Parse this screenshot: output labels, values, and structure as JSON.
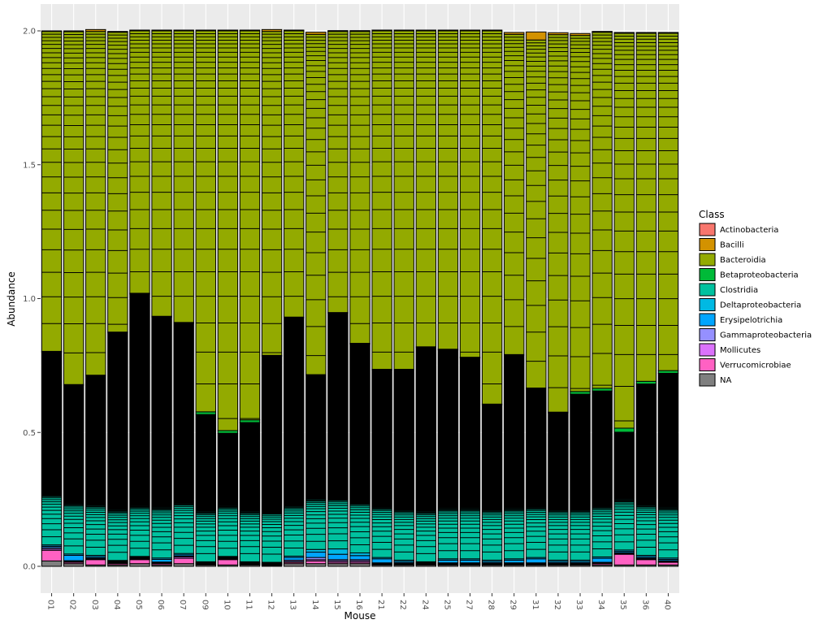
{
  "chart_data": {
    "type": "bar",
    "stacked": true,
    "xlabel": "Mouse",
    "ylabel": "Abundance",
    "ylim": [
      0,
      2.0
    ],
    "yticks": [
      "0.0",
      "0.5",
      "1.0",
      "1.5",
      "2.0"
    ],
    "yticks_values": [
      0,
      0.5,
      1.0,
      1.5,
      2.0
    ],
    "grid": true,
    "legend_position": "right",
    "legend_title": "Class",
    "categories": [
      "01",
      "02",
      "03",
      "04",
      "05",
      "06",
      "07",
      "09",
      "10",
      "11",
      "12",
      "13",
      "14",
      "15",
      "16",
      "21",
      "22",
      "24",
      "25",
      "27",
      "28",
      "29",
      "31",
      "32",
      "33",
      "34",
      "35",
      "36",
      "40"
    ],
    "classes": [
      {
        "name": "Actinobacteria",
        "color": "#F8766D"
      },
      {
        "name": "Bacilli",
        "color": "#D39200"
      },
      {
        "name": "Bacteroidia",
        "color": "#93AA00"
      },
      {
        "name": "Betaproteobacteria",
        "color": "#00BA38"
      },
      {
        "name": "Clostridia",
        "color": "#00C19F"
      },
      {
        "name": "Deltaproteobacteria",
        "color": "#00B9E3"
      },
      {
        "name": "Erysipelotrichia",
        "color": "#00A5FF"
      },
      {
        "name": "Gammaproteobacteria",
        "color": "#9590FF"
      },
      {
        "name": "Mollicutes",
        "color": "#DB72FB"
      },
      {
        "name": "Verrucomicrobiae",
        "color": "#FF61C3"
      },
      {
        "name": "NA",
        "color": "#7F7F7F"
      }
    ],
    "series": [
      {
        "name": "NA",
        "values": [
          0.02,
          0.01,
          0.005,
          0.005,
          0.01,
          0.005,
          0.01,
          0.005,
          0.005,
          0.005,
          0.003,
          0.01,
          0.01,
          0.01,
          0.01,
          0.005,
          0.005,
          0.005,
          0.005,
          0.005,
          0.005,
          0.005,
          0.005,
          0.005,
          0.005,
          0.005,
          0.005,
          0.005,
          0.005
        ]
      },
      {
        "name": "Verrucomicrobiae",
        "values": [
          0.04,
          0.005,
          0.02,
          0.005,
          0.015,
          0.005,
          0.02,
          0.003,
          0.02,
          0.003,
          0.003,
          0.005,
          0.01,
          0.005,
          0.005,
          0.003,
          0.003,
          0.003,
          0.003,
          0.003,
          0.003,
          0.003,
          0.003,
          0.003,
          0.003,
          0.005,
          0.04,
          0.02,
          0.01
        ]
      },
      {
        "name": "Mollicutes",
        "values": [
          0.005,
          0.003,
          0.003,
          0.003,
          0.003,
          0.003,
          0.005,
          0.002,
          0.003,
          0.002,
          0.002,
          0.003,
          0.005,
          0.005,
          0.005,
          0.002,
          0.002,
          0.002,
          0.002,
          0.002,
          0.002,
          0.002,
          0.002,
          0.002,
          0.002,
          0.002,
          0.003,
          0.003,
          0.003
        ]
      },
      {
        "name": "Gammaproteobacteria",
        "values": [
          0.005,
          0.003,
          0.003,
          0.003,
          0.003,
          0.003,
          0.003,
          0.002,
          0.003,
          0.002,
          0.002,
          0.005,
          0.008,
          0.005,
          0.005,
          0.003,
          0.003,
          0.002,
          0.003,
          0.003,
          0.003,
          0.003,
          0.003,
          0.003,
          0.003,
          0.003,
          0.003,
          0.003,
          0.003
        ]
      },
      {
        "name": "Erysipelotrichia",
        "values": [
          0.005,
          0.02,
          0.005,
          0.003,
          0.003,
          0.01,
          0.005,
          0.002,
          0.003,
          0.002,
          0.002,
          0.01,
          0.02,
          0.02,
          0.015,
          0.015,
          0.005,
          0.002,
          0.01,
          0.01,
          0.005,
          0.01,
          0.015,
          0.005,
          0.005,
          0.015,
          0.005,
          0.005,
          0.005
        ]
      },
      {
        "name": "Deltaproteobacteria",
        "values": [
          0.005,
          0.005,
          0.005,
          0.003,
          0.003,
          0.005,
          0.005,
          0.003,
          0.003,
          0.003,
          0.003,
          0.005,
          0.01,
          0.02,
          0.01,
          0.005,
          0.005,
          0.003,
          0.005,
          0.005,
          0.005,
          0.005,
          0.005,
          0.005,
          0.005,
          0.005,
          0.005,
          0.005,
          0.005
        ]
      },
      {
        "name": "Clostridia",
        "values": [
          0.72,
          0.63,
          0.67,
          0.85,
          0.98,
          0.9,
          0.86,
          0.55,
          0.46,
          0.52,
          0.77,
          0.89,
          0.65,
          0.88,
          0.78,
          0.7,
          0.71,
          0.8,
          0.78,
          0.75,
          0.58,
          0.76,
          0.63,
          0.55,
          0.62,
          0.62,
          0.44,
          0.64,
          0.69
        ]
      },
      {
        "name": "Betaproteobacteria",
        "values": [
          0.003,
          0.003,
          0.003,
          0.003,
          0.003,
          0.003,
          0.003,
          0.01,
          0.01,
          0.01,
          0.003,
          0.003,
          0.003,
          0.003,
          0.003,
          0.003,
          0.003,
          0.003,
          0.003,
          0.003,
          0.003,
          0.003,
          0.003,
          0.003,
          0.01,
          0.01,
          0.015,
          0.01,
          0.01
        ]
      },
      {
        "name": "Bacteroidia",
        "values": [
          1.195,
          1.318,
          1.284,
          1.12,
          0.98,
          1.066,
          1.089,
          1.423,
          1.493,
          1.453,
          1.21,
          1.069,
          1.271,
          1.05,
          1.165,
          1.264,
          1.264,
          1.18,
          1.189,
          1.219,
          1.394,
          1.196,
          1.3,
          1.41,
          1.33,
          1.33,
          1.475,
          1.3,
          1.26
        ]
      },
      {
        "name": "Bacilli",
        "values": [
          0.002,
          0.003,
          0.007,
          0.003,
          0.003,
          0.003,
          0.003,
          0.003,
          0.003,
          0.003,
          0.007,
          0.003,
          0.008,
          0.003,
          0.003,
          0.003,
          0.003,
          0.003,
          0.003,
          0.003,
          0.003,
          0.007,
          0.03,
          0.007,
          0.007,
          0.003,
          0.003,
          0.003,
          0.003
        ]
      },
      {
        "name": "Actinobacteria",
        "values": [
          0,
          0,
          0,
          0,
          0,
          0,
          0,
          0,
          0,
          0,
          0,
          0,
          0,
          0,
          0,
          0,
          0,
          0,
          0,
          0,
          0,
          0,
          0,
          0,
          0,
          0,
          0,
          0,
          0
        ]
      }
    ]
  }
}
